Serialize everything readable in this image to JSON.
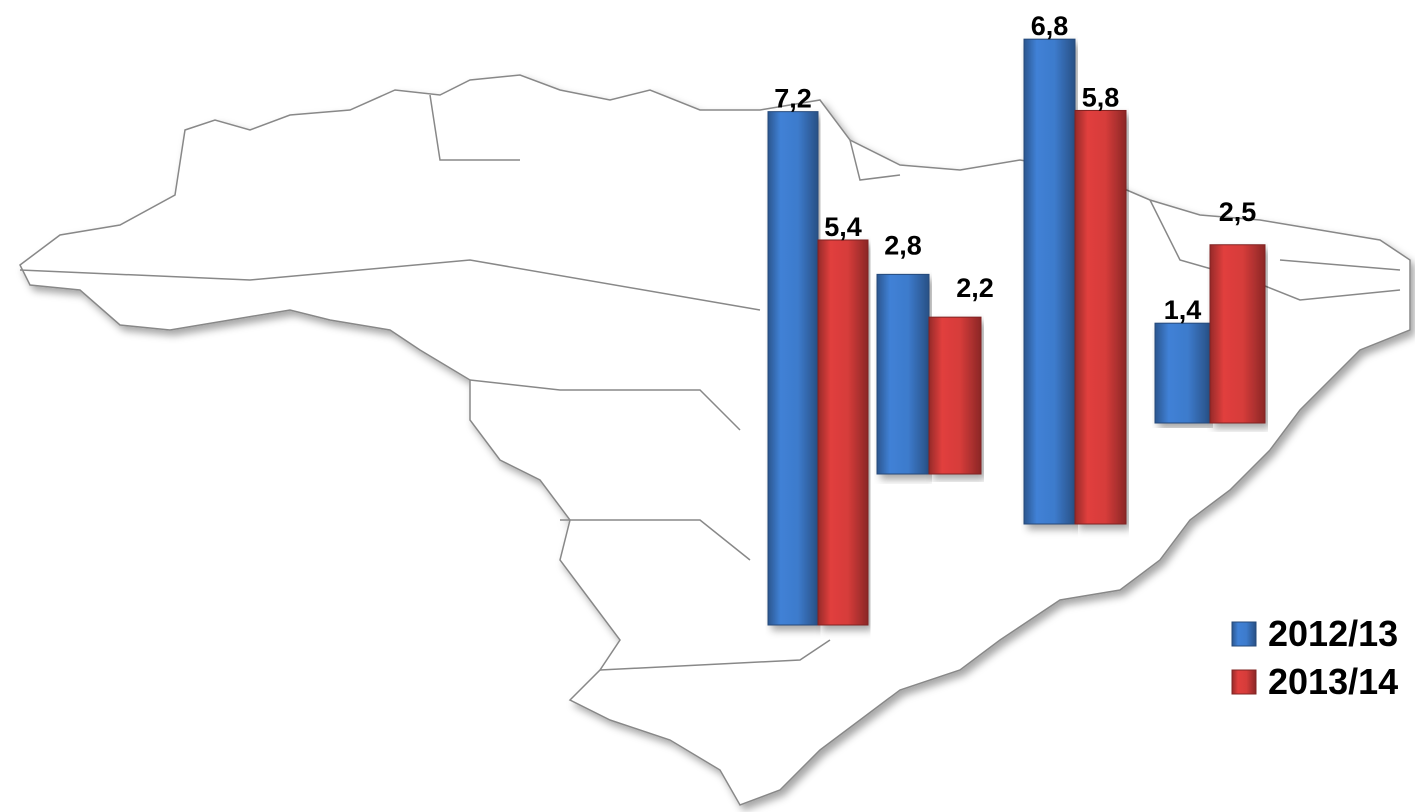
{
  "chart_data": {
    "type": "bar",
    "categories": [
      null,
      null,
      null,
      null
    ],
    "series": [
      {
        "name": "2012/13",
        "color": "#3d7bcc",
        "values": [
          7.2,
          2.8,
          6.8,
          1.4
        ],
        "value_labels": [
          "7,2",
          "2,8",
          "6,8",
          "1,4"
        ]
      },
      {
        "name": "2013/14",
        "color": "#d63c3a",
        "values": [
          5.4,
          2.2,
          5.8,
          2.5
        ],
        "value_labels": [
          "5,4",
          "2,2",
          "5,8",
          "2,5"
        ]
      }
    ]
  }
}
